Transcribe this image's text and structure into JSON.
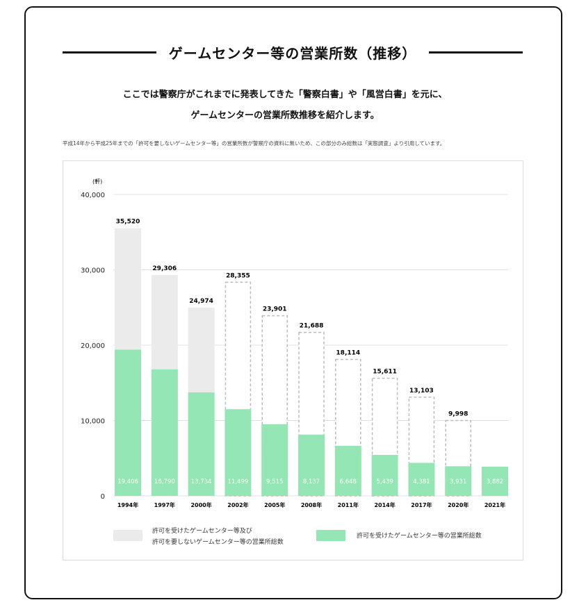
{
  "title": "ゲームセンター等の営業所数（推移）",
  "lead": [
    "ここでは警察庁がこれまでに発表してきた「警察白書」や「風営白書」を元に、",
    "ゲームセンターの営業所数推移を紹介します。"
  ],
  "note": "平成14年から平成25年までの「許可を要しないゲームセンター等」の営業所数が警察庁の資料に無いため、この部分のみ総数は「実態調査」より引用しています。",
  "colors": {
    "total": "#ebebeb",
    "licensed": "#94e6b4",
    "dashed": "#bbbbbb"
  },
  "chart_data": {
    "type": "bar",
    "unit_label": "(軒)",
    "ylim": [
      0,
      40000
    ],
    "yticks": [
      "0",
      "10,000",
      "20,000",
      "30,000",
      "40,000"
    ],
    "grid": true,
    "categories": [
      "1994年",
      "1997年",
      "2000年",
      "2002年",
      "2005年",
      "2008年",
      "2011年",
      "2014年",
      "2017年",
      "2020年",
      "2021年"
    ],
    "series": [
      {
        "name": "許可を受けたゲームセンター等及び許可を要しないゲームセンター等の営業所総数",
        "values": [
          35520,
          29306,
          24974,
          28355,
          23901,
          21688,
          18114,
          15611,
          13103,
          9998,
          null
        ],
        "labels": [
          "35,520",
          "29,306",
          "24,974",
          "28,355",
          "23,901",
          "21,688",
          "18,114",
          "15,611",
          "13,103",
          "9,998",
          ""
        ],
        "dashed": [
          false,
          false,
          false,
          true,
          true,
          true,
          true,
          true,
          true,
          true,
          false
        ]
      },
      {
        "name": "許可を受けたゲームセンター等の営業所総数",
        "values": [
          19406,
          16790,
          13734,
          11499,
          9515,
          8137,
          6648,
          5439,
          4381,
          3931,
          3882
        ],
        "labels": [
          "19,406",
          "16,790",
          "13,734",
          "11,499",
          "9,515",
          "8,137",
          "6,648",
          "5,439",
          "4,381",
          "3,931",
          "3,882"
        ]
      }
    ],
    "legend": {
      "placement": "bottom",
      "total_lines": [
        "許可を受けたゲームセンター等及び",
        "許可を要しないゲームセンター等の営業所総数"
      ],
      "licensed": "許可を受けたゲームセンター等の営業所総数"
    }
  }
}
